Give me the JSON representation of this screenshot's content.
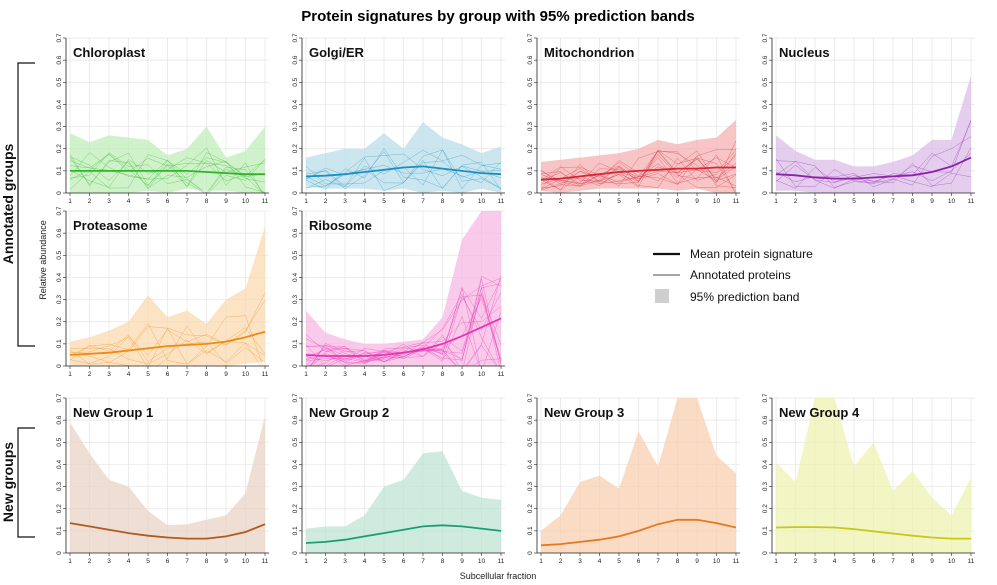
{
  "chart_data": {
    "type": "line",
    "title": "Protein signatures by group with 95% prediction bands",
    "xlabel": "Subcellular fraction",
    "ylabel": "Relative abundance",
    "x": [
      1,
      2,
      3,
      4,
      5,
      6,
      7,
      8,
      9,
      10,
      11
    ],
    "y_ticks": [
      "0",
      "0.1",
      "0.2",
      "0.3",
      "0.4",
      "0.5",
      "0.6",
      "0.7"
    ],
    "ylim": [
      0,
      0.7
    ],
    "section_labels": {
      "annotated": "Annotated groups",
      "new": "New groups"
    },
    "legend": {
      "mean": "Mean protein signature",
      "proteins": "Annotated proteins",
      "band": "95% prediction band"
    },
    "panels": [
      {
        "name": "Chloroplast",
        "color": "#2fb526",
        "fill": "#bfeeba",
        "mean": [
          0.1,
          0.1,
          0.1,
          0.1,
          0.1,
          0.1,
          0.1,
          0.095,
          0.09,
          0.085,
          0.085
        ],
        "upper": [
          0.27,
          0.23,
          0.26,
          0.25,
          0.24,
          0.17,
          0.2,
          0.3,
          0.16,
          0.19,
          0.3
        ],
        "lower": [
          0.0,
          0.0,
          0.0,
          0.0,
          0.01,
          0.0,
          0.02,
          0.01,
          0.01,
          0.0,
          0.0
        ],
        "n_proteins": 10
      },
      {
        "name": "Golgi/ER",
        "color": "#1b8fc1",
        "fill": "#b9dde9",
        "mean": [
          0.075,
          0.078,
          0.085,
          0.095,
          0.105,
          0.115,
          0.12,
          0.11,
          0.1,
          0.09,
          0.085
        ],
        "upper": [
          0.16,
          0.18,
          0.2,
          0.2,
          0.27,
          0.2,
          0.32,
          0.25,
          0.22,
          0.18,
          0.21
        ],
        "lower": [
          0.03,
          0.02,
          0.02,
          0.02,
          0.01,
          0.02,
          0.0,
          0.01,
          0.0,
          0.02,
          0.0
        ],
        "n_proteins": 8
      },
      {
        "name": "Mitochondrion",
        "color": "#d6263a",
        "fill": "#f4b1b1",
        "mean": [
          0.06,
          0.065,
          0.075,
          0.085,
          0.095,
          0.1,
          0.105,
          0.11,
          0.11,
          0.115,
          0.115
        ],
        "upper": [
          0.14,
          0.15,
          0.16,
          0.17,
          0.18,
          0.2,
          0.24,
          0.22,
          0.24,
          0.25,
          0.33
        ],
        "lower": [
          0.01,
          0.0,
          0.01,
          0.02,
          0.02,
          0.02,
          0.02,
          0.01,
          0.02,
          0.0,
          -0.02
        ],
        "n_proteins": 14
      },
      {
        "name": "Nucleus",
        "color": "#8b22a8",
        "fill": "#dcbce8",
        "mean": [
          0.085,
          0.08,
          0.07,
          0.065,
          0.065,
          0.07,
          0.075,
          0.08,
          0.095,
          0.12,
          0.16
        ],
        "upper": [
          0.26,
          0.19,
          0.15,
          0.15,
          0.12,
          0.12,
          0.14,
          0.17,
          0.24,
          0.24,
          0.53
        ],
        "lower": [
          0.01,
          0.01,
          0.0,
          0.0,
          0.0,
          0.0,
          0.0,
          0.0,
          0.0,
          0.0,
          -0.02
        ],
        "n_proteins": 6
      },
      {
        "name": "Proteasome",
        "color": "#f08a12",
        "fill": "#fad9b0",
        "mean": [
          0.05,
          0.055,
          0.06,
          0.07,
          0.08,
          0.09,
          0.095,
          0.1,
          0.11,
          0.13,
          0.155
        ],
        "upper": [
          0.11,
          0.13,
          0.16,
          0.2,
          0.32,
          0.22,
          0.25,
          0.19,
          0.3,
          0.35,
          0.63
        ],
        "lower": [
          0.0,
          0.0,
          0.0,
          0.0,
          0.0,
          0.0,
          0.0,
          0.0,
          0.0,
          0.01,
          0.02
        ],
        "n_proteins": 7
      },
      {
        "name": "Ribosome",
        "color": "#e834b4",
        "fill": "#f7b8e3",
        "mean": [
          0.05,
          0.045,
          0.045,
          0.045,
          0.05,
          0.06,
          0.075,
          0.1,
          0.135,
          0.175,
          0.215
        ],
        "upper": [
          0.25,
          0.15,
          0.12,
          0.1,
          0.1,
          0.11,
          0.12,
          0.22,
          0.57,
          0.72,
          0.72
        ],
        "lower": [
          0.0,
          0.0,
          0.0,
          0.0,
          0.0,
          0.0,
          0.0,
          0.0,
          0.0,
          0.0,
          0.0
        ],
        "n_proteins": 18
      },
      {
        "name": "New Group  1",
        "color": "#b15a1e",
        "fill": "#e8d3c4",
        "mean": [
          0.135,
          0.12,
          0.105,
          0.09,
          0.078,
          0.07,
          0.065,
          0.065,
          0.075,
          0.095,
          0.13
        ],
        "upper": [
          0.59,
          0.45,
          0.33,
          0.3,
          0.19,
          0.125,
          0.13,
          0.15,
          0.17,
          0.27,
          0.62
        ],
        "lower": [
          0.0,
          0.0,
          0.0,
          0.0,
          0.0,
          0.0,
          0.0,
          0.0,
          0.0,
          0.0,
          0.0
        ],
        "n_proteins": 0
      },
      {
        "name": "New Group  2",
        "color": "#1a9e76",
        "fill": "#bfe4d6",
        "mean": [
          0.045,
          0.05,
          0.06,
          0.075,
          0.09,
          0.105,
          0.12,
          0.125,
          0.12,
          0.11,
          0.1
        ],
        "upper": [
          0.11,
          0.12,
          0.12,
          0.17,
          0.3,
          0.33,
          0.45,
          0.46,
          0.28,
          0.25,
          0.24
        ],
        "lower": [
          0.0,
          0.0,
          0.0,
          0.0,
          0.0,
          0.0,
          0.0,
          0.0,
          0.0,
          0.0,
          0.0
        ],
        "n_proteins": 0
      },
      {
        "name": "New Group  3",
        "color": "#e8781e",
        "fill": "#f8cfb0",
        "mean": [
          0.035,
          0.04,
          0.05,
          0.06,
          0.075,
          0.1,
          0.13,
          0.15,
          0.15,
          0.135,
          0.115
        ],
        "upper": [
          0.1,
          0.17,
          0.32,
          0.35,
          0.29,
          0.55,
          0.39,
          0.72,
          0.72,
          0.44,
          0.36
        ],
        "lower": [
          0.0,
          0.0,
          0.0,
          0.0,
          0.0,
          0.0,
          0.0,
          0.0,
          0.0,
          0.0,
          0.0
        ],
        "n_proteins": 0
      },
      {
        "name": "New Group  4",
        "color": "#c7c81a",
        "fill": "#eef2b0",
        "mean": [
          0.115,
          0.117,
          0.117,
          0.115,
          0.108,
          0.098,
          0.088,
          0.078,
          0.07,
          0.065,
          0.065
        ],
        "upper": [
          0.41,
          0.32,
          0.72,
          0.72,
          0.39,
          0.5,
          0.28,
          0.37,
          0.25,
          0.17,
          0.34
        ],
        "lower": [
          0.0,
          0.0,
          0.0,
          0.0,
          0.0,
          0.0,
          0.0,
          0.0,
          0.0,
          0.0,
          0.0
        ],
        "n_proteins": 0
      }
    ]
  }
}
